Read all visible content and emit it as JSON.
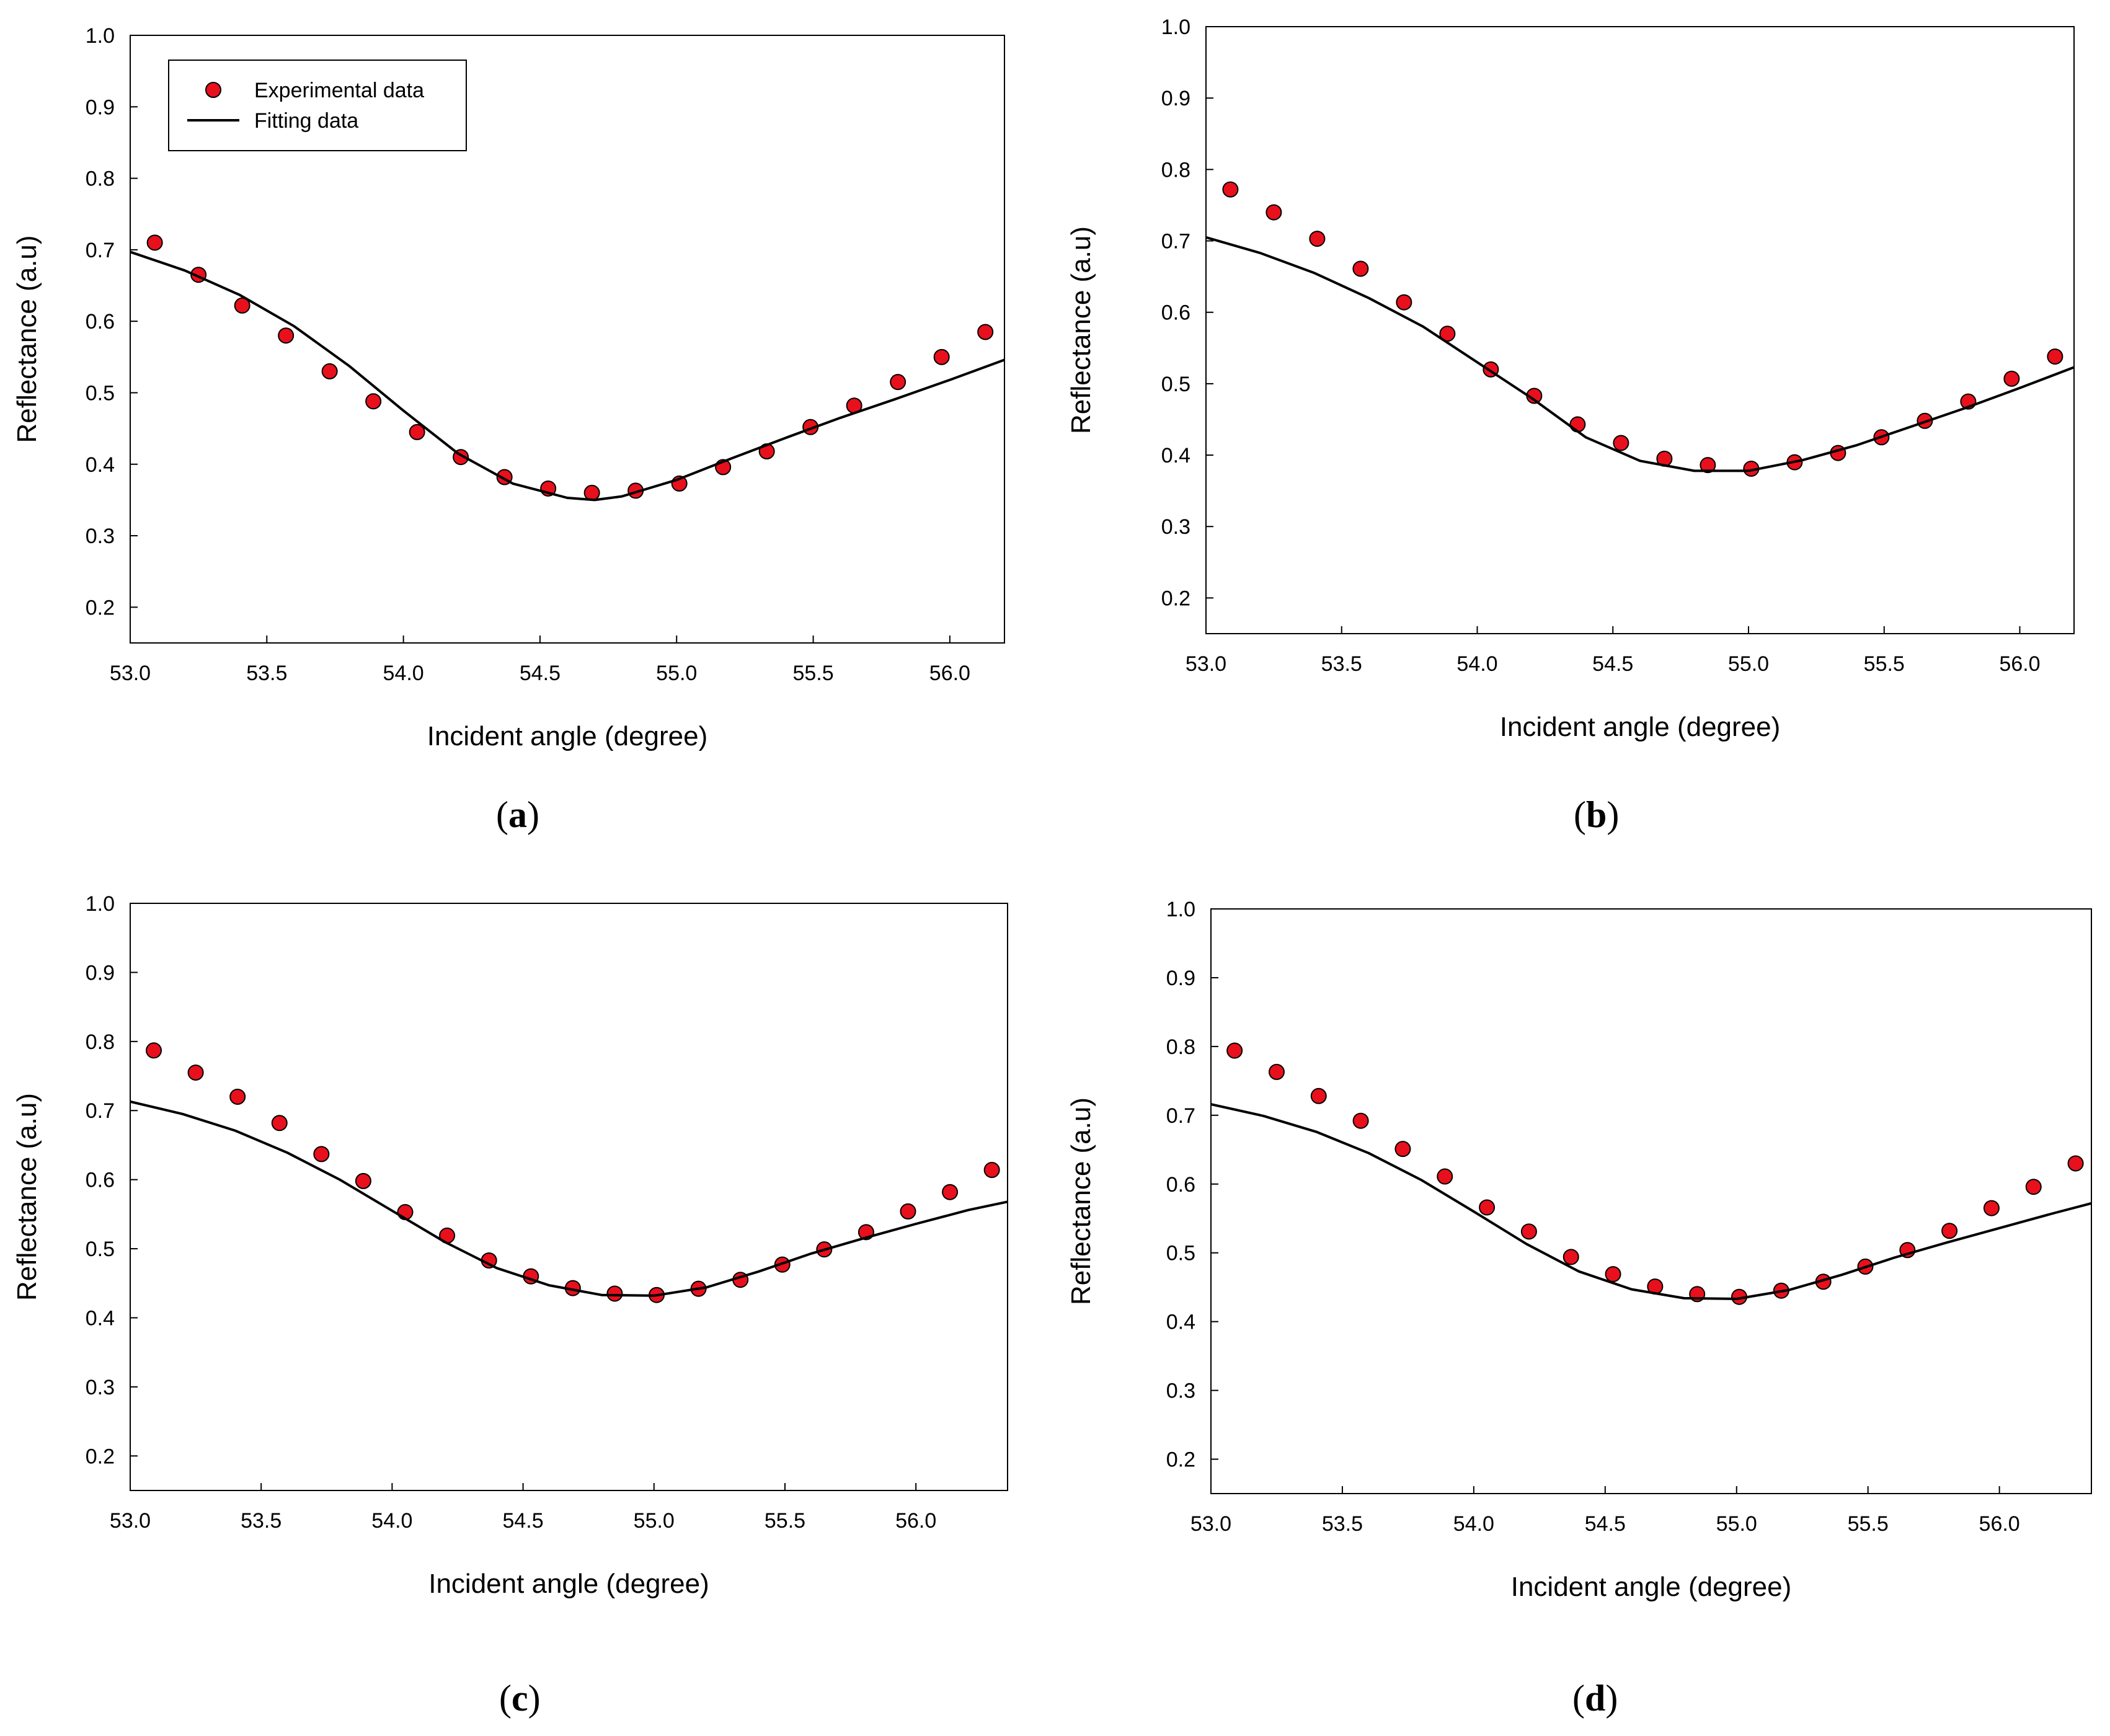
{
  "chart_data": [
    {
      "id": "a",
      "type": "line+scatter",
      "panel_label": "a",
      "xlabel": "Incident angle (degree)",
      "ylabel": "Reflectance (a.u)",
      "xlim": [
        53.0,
        56.2
      ],
      "ylim": [
        0.15,
        1.0
      ],
      "xticks": [
        "53.0",
        "53.5",
        "54.0",
        "54.5",
        "55.0",
        "55.5",
        "56.0"
      ],
      "yticks": [
        "0.2",
        "0.3",
        "0.4",
        "0.5",
        "0.6",
        "0.7",
        "0.8",
        "0.9",
        "1.0"
      ],
      "legend": {
        "placement": "top-left",
        "items": [
          "Experimental data",
          "Fitting data"
        ]
      },
      "series": [
        {
          "name": "Experimental data",
          "kind": "scatter",
          "color": "#e8101c",
          "x": [
            53.09,
            53.25,
            53.41,
            53.57,
            53.73,
            53.89,
            54.05,
            54.21,
            54.37,
            54.53,
            54.69,
            54.85,
            55.01,
            55.17,
            55.33,
            55.49,
            55.65,
            55.81,
            55.97,
            56.13
          ],
          "y": [
            0.71,
            0.665,
            0.622,
            0.58,
            0.53,
            0.488,
            0.445,
            0.41,
            0.382,
            0.366,
            0.36,
            0.363,
            0.373,
            0.396,
            0.418,
            0.452,
            0.482,
            0.515,
            0.55,
            0.585
          ]
        },
        {
          "name": "Fitting data",
          "kind": "line",
          "color": "#000000",
          "x": [
            53.0,
            53.2,
            53.4,
            53.6,
            53.8,
            54.0,
            54.2,
            54.4,
            54.6,
            54.7,
            54.8,
            55.0,
            55.2,
            55.4,
            55.6,
            55.8,
            56.0,
            56.2
          ],
          "y": [
            0.697,
            0.671,
            0.637,
            0.593,
            0.538,
            0.475,
            0.415,
            0.373,
            0.353,
            0.35,
            0.355,
            0.378,
            0.408,
            0.437,
            0.465,
            0.491,
            0.518,
            0.546
          ]
        }
      ]
    },
    {
      "id": "b",
      "type": "line+scatter",
      "panel_label": "b",
      "xlabel": "Incident angle (degree)",
      "ylabel": "Reflectance (a.u)",
      "xlim": [
        53.0,
        56.2
      ],
      "ylim": [
        0.15,
        1.0
      ],
      "xticks": [
        "53.0",
        "53.5",
        "54.0",
        "54.5",
        "55.0",
        "55.5",
        "56.0"
      ],
      "yticks": [
        "0.2",
        "0.3",
        "0.4",
        "0.5",
        "0.6",
        "0.7",
        "0.8",
        "0.9",
        "1.0"
      ],
      "series": [
        {
          "name": "Experimental data",
          "kind": "scatter",
          "color": "#e8101c",
          "x": [
            53.09,
            53.25,
            53.41,
            53.57,
            53.73,
            53.89,
            54.05,
            54.21,
            54.37,
            54.53,
            54.69,
            54.85,
            55.01,
            55.17,
            55.33,
            55.49,
            55.65,
            55.81,
            55.97,
            56.13
          ],
          "y": [
            0.772,
            0.74,
            0.703,
            0.661,
            0.614,
            0.57,
            0.52,
            0.483,
            0.443,
            0.417,
            0.395,
            0.386,
            0.381,
            0.39,
            0.403,
            0.425,
            0.448,
            0.475,
            0.507,
            0.538
          ]
        },
        {
          "name": "Fitting data",
          "kind": "line",
          "color": "#000000",
          "x": [
            53.0,
            53.2,
            53.4,
            53.6,
            53.8,
            54.0,
            54.2,
            54.4,
            54.6,
            54.8,
            55.0,
            55.2,
            55.4,
            55.6,
            55.8,
            56.0,
            56.2
          ],
          "y": [
            0.705,
            0.683,
            0.655,
            0.62,
            0.58,
            0.53,
            0.48,
            0.425,
            0.392,
            0.378,
            0.378,
            0.393,
            0.414,
            0.44,
            0.466,
            0.494,
            0.523
          ]
        }
      ]
    },
    {
      "id": "c",
      "type": "line+scatter",
      "panel_label": "c",
      "xlabel": "Incident angle (degree)",
      "ylabel": "Reflectance (a.u)",
      "xlim": [
        53.0,
        56.35
      ],
      "ylim": [
        0.15,
        1.0
      ],
      "xticks": [
        "53.0",
        "53.5",
        "54.0",
        "54.5",
        "55.0",
        "55.5",
        "56.0"
      ],
      "yticks": [
        "0.2",
        "0.3",
        "0.4",
        "0.5",
        "0.6",
        "0.7",
        "0.8",
        "0.9",
        "1.0"
      ],
      "series": [
        {
          "name": "Experimental data",
          "kind": "scatter",
          "color": "#e8101c",
          "x": [
            53.09,
            53.25,
            53.41,
            53.57,
            53.73,
            53.89,
            54.05,
            54.21,
            54.37,
            54.53,
            54.69,
            54.85,
            55.01,
            55.17,
            55.33,
            55.49,
            55.65,
            55.81,
            55.97,
            56.13,
            56.29
          ],
          "y": [
            0.787,
            0.755,
            0.72,
            0.682,
            0.637,
            0.598,
            0.553,
            0.519,
            0.483,
            0.46,
            0.443,
            0.435,
            0.433,
            0.442,
            0.455,
            0.477,
            0.499,
            0.524,
            0.554,
            0.582,
            0.614
          ]
        },
        {
          "name": "Fitting data",
          "kind": "line",
          "color": "#000000",
          "x": [
            53.0,
            53.2,
            53.4,
            53.6,
            53.8,
            54.0,
            54.2,
            54.4,
            54.6,
            54.8,
            55.0,
            55.2,
            55.4,
            55.6,
            55.8,
            56.0,
            56.2,
            56.35
          ],
          "y": [
            0.713,
            0.695,
            0.671,
            0.639,
            0.6,
            0.555,
            0.51,
            0.472,
            0.447,
            0.433,
            0.432,
            0.444,
            0.467,
            0.493,
            0.515,
            0.536,
            0.556,
            0.568
          ]
        }
      ]
    },
    {
      "id": "d",
      "type": "line+scatter",
      "panel_label": "d",
      "xlabel": "Incident angle (degree)",
      "ylabel": "Reflectance (a.u)",
      "xlim": [
        53.0,
        56.35
      ],
      "ylim": [
        0.15,
        1.0
      ],
      "xticks": [
        "53.0",
        "53.5",
        "54.0",
        "54.5",
        "55.0",
        "55.5",
        "56.0"
      ],
      "yticks": [
        "0.2",
        "0.3",
        "0.4",
        "0.5",
        "0.6",
        "0.7",
        "0.8",
        "0.9",
        "1.0"
      ],
      "series": [
        {
          "name": "Experimental data",
          "kind": "scatter",
          "color": "#e8101c",
          "x": [
            53.09,
            53.25,
            53.41,
            53.57,
            53.73,
            53.89,
            54.05,
            54.21,
            54.37,
            54.53,
            54.69,
            54.85,
            55.01,
            55.17,
            55.33,
            55.49,
            55.65,
            55.81,
            55.97,
            56.13,
            56.29
          ],
          "y": [
            0.794,
            0.763,
            0.728,
            0.692,
            0.651,
            0.611,
            0.566,
            0.531,
            0.494,
            0.469,
            0.451,
            0.44,
            0.436,
            0.445,
            0.458,
            0.48,
            0.504,
            0.532,
            0.565,
            0.596,
            0.63
          ]
        },
        {
          "name": "Fitting data",
          "kind": "line",
          "color": "#000000",
          "x": [
            53.0,
            53.2,
            53.4,
            53.6,
            53.8,
            54.0,
            54.2,
            54.4,
            54.6,
            54.8,
            55.0,
            55.2,
            55.4,
            55.6,
            55.8,
            56.0,
            56.2,
            56.35
          ],
          "y": [
            0.716,
            0.699,
            0.676,
            0.645,
            0.606,
            0.56,
            0.513,
            0.473,
            0.447,
            0.434,
            0.433,
            0.446,
            0.468,
            0.493,
            0.515,
            0.536,
            0.557,
            0.572
          ]
        }
      ]
    }
  ]
}
